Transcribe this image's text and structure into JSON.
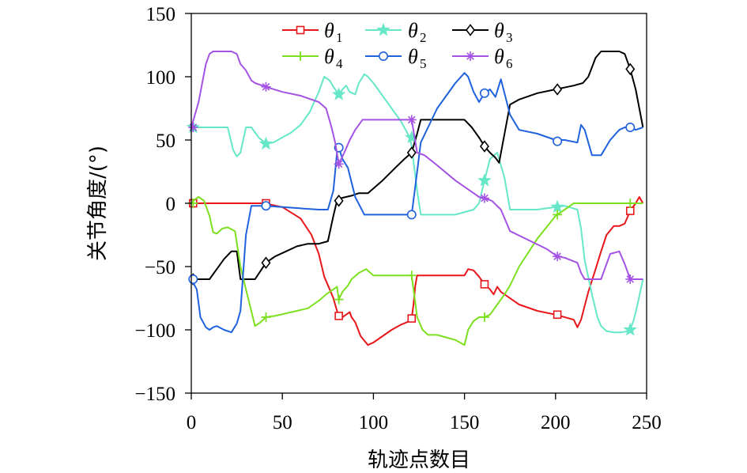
{
  "chart_data": {
    "type": "line",
    "title": "",
    "xlabel": "轨迹点数目",
    "ylabel": "关节角度/(°)",
    "xlim": [
      0,
      250
    ],
    "ylim": [
      -150,
      150
    ],
    "xticks": [
      0,
      50,
      100,
      150,
      200,
      250
    ],
    "yticks": [
      -150,
      -100,
      -50,
      0,
      50,
      100,
      150
    ],
    "xtick_labels": [
      "0",
      "50",
      "100",
      "150",
      "200",
      "250"
    ],
    "ytick_labels": [
      "−150",
      "−100",
      "−50",
      "0",
      "50",
      "100",
      "150"
    ],
    "grid": false,
    "legend_position": "top",
    "series": [
      {
        "name": "θ1",
        "legend_base": "θ",
        "legend_sub": "1",
        "color": "#e8161b",
        "marker": "square",
        "x": [
          0,
          20,
          40,
          50,
          60,
          66,
          70,
          73,
          76,
          78,
          80,
          81,
          83,
          85,
          87,
          88,
          90,
          93,
          97,
          100,
          105,
          110,
          115,
          120,
          121,
          122,
          123,
          124,
          126,
          140,
          150,
          152,
          155,
          158,
          161,
          164,
          166,
          168,
          170,
          180,
          190,
          200,
          210,
          212,
          214,
          218,
          222,
          225,
          228,
          232,
          235,
          238,
          241,
          244,
          246,
          248
        ],
        "y": [
          0,
          0,
          0,
          -3,
          -12,
          -25,
          -40,
          -58,
          -68,
          -75,
          -85,
          -89,
          -90,
          -88,
          -86,
          -90,
          -94,
          -105,
          -112,
          -110,
          -105,
          -100,
          -96,
          -93,
          -91,
          -80,
          -65,
          -57,
          -57,
          -57,
          -57,
          -52,
          -53,
          -58,
          -64,
          -68,
          -72,
          -66,
          -70,
          -80,
          -85,
          -88,
          -92,
          -98,
          -92,
          -70,
          -52,
          -38,
          -25,
          -18,
          -18,
          -16,
          -6,
          0,
          5,
          0
        ],
        "marker_x": [
          1,
          41,
          81,
          121,
          161,
          201,
          241
        ],
        "marker_y": [
          0,
          0,
          -89,
          -91,
          -64,
          -88,
          -6
        ]
      },
      {
        "name": "θ2",
        "legend_base": "θ",
        "legend_sub": "2",
        "color": "#66e8c8",
        "marker": "star",
        "x": [
          0,
          10,
          20,
          23,
          25,
          27,
          30,
          33,
          37,
          41,
          45,
          50,
          55,
          60,
          65,
          70,
          73,
          76,
          78,
          80,
          81,
          83,
          85,
          87,
          90,
          92,
          95,
          97,
          100,
          105,
          110,
          115,
          120,
          121,
          124,
          126,
          128,
          135,
          145,
          155,
          158,
          161,
          164,
          168,
          172,
          175,
          190,
          200,
          205,
          212,
          214,
          216,
          220,
          223,
          225,
          228,
          232,
          236,
          240,
          241,
          243,
          245,
          248
        ],
        "y": [
          60,
          60,
          60,
          42,
          37,
          40,
          60,
          60,
          52,
          47,
          48,
          52,
          56,
          62,
          72,
          88,
          100,
          97,
          92,
          88,
          85,
          90,
          93,
          88,
          86,
          95,
          102,
          100,
          95,
          85,
          75,
          65,
          52,
          45,
          10,
          -9,
          -9,
          -9,
          -9,
          -5,
          0,
          18,
          35,
          40,
          20,
          -5,
          -5,
          -3,
          -2,
          -5,
          -20,
          -45,
          -72,
          -90,
          -97,
          -101,
          -102,
          -102,
          -101,
          -100,
          -92,
          -80,
          -60
        ],
        "marker_x": [
          1,
          41,
          81,
          121,
          161,
          201,
          241
        ],
        "marker_y": [
          60,
          47,
          86,
          52,
          18,
          -3,
          -100
        ]
      },
      {
        "name": "θ3",
        "legend_base": "θ",
        "legend_sub": "3",
        "color": "#000000",
        "marker": "diamond",
        "x": [
          0,
          5,
          10,
          14,
          18,
          22,
          25,
          27,
          30,
          35,
          41,
          46,
          52,
          58,
          64,
          70,
          75,
          78,
          80,
          82,
          85,
          88,
          92,
          97,
          105,
          112,
          117,
          121,
          124,
          126,
          132,
          140,
          150,
          154,
          158,
          161,
          164,
          167,
          169,
          172,
          175,
          180,
          190,
          200,
          210,
          215,
          218,
          222,
          225,
          230,
          235,
          238,
          241,
          244,
          246,
          248
        ],
        "y": [
          -60,
          -60,
          -60,
          -52,
          -44,
          -38,
          -38,
          -60,
          -60,
          -60,
          -47,
          -42,
          -38,
          -34,
          -32,
          -32,
          -30,
          -10,
          2,
          4,
          5,
          6,
          8,
          8,
          18,
          28,
          35,
          40,
          55,
          66,
          66,
          66,
          66,
          60,
          52,
          45,
          40,
          36,
          32,
          55,
          78,
          82,
          87,
          90,
          93,
          95,
          100,
          115,
          120,
          120,
          120,
          118,
          106,
          90,
          75,
          60
        ],
        "marker_x": [
          1,
          41,
          81,
          121,
          161,
          201,
          241
        ],
        "marker_y": [
          -60,
          -47,
          2,
          40,
          45,
          90,
          106
        ]
      },
      {
        "name": "θ4",
        "legend_base": "θ",
        "legend_sub": "4",
        "color": "#7ce01f",
        "marker": "plus",
        "x": [
          0,
          2,
          4,
          7,
          10,
          12,
          14,
          17,
          20,
          24,
          27,
          30,
          35,
          38,
          41,
          46,
          52,
          58,
          64,
          70,
          74,
          78,
          80,
          81,
          83,
          86,
          88,
          92,
          96,
          100,
          110,
          120,
          121,
          124,
          127,
          130,
          135,
          140,
          145,
          150,
          152,
          155,
          158,
          161,
          164,
          168,
          172,
          175,
          180,
          190,
          200,
          210,
          212,
          214,
          220,
          230,
          240,
          241,
          245,
          248
        ],
        "y": [
          0,
          3,
          5,
          2,
          -10,
          -23,
          -24,
          -20,
          -19,
          -22,
          -50,
          -68,
          -97,
          -94,
          -90,
          -89,
          -87,
          -85,
          -83,
          -77,
          -72,
          -68,
          -66,
          -76,
          -70,
          -65,
          -60,
          -55,
          -52,
          -57,
          -57,
          -57,
          -57,
          -90,
          -100,
          -104,
          -104,
          -106,
          -108,
          -112,
          -100,
          -93,
          -90,
          -90,
          -88,
          -80,
          -72,
          -65,
          -50,
          -28,
          -10,
          0,
          0,
          0,
          0,
          0,
          0,
          0,
          0,
          0
        ],
        "marker_x": [
          1,
          41,
          81,
          121,
          161,
          201,
          241
        ],
        "marker_y": [
          0,
          -90,
          -76,
          -57,
          -90,
          -9,
          0
        ]
      },
      {
        "name": "θ5",
        "legend_base": "θ",
        "legend_sub": "5",
        "color": "#1f62dd",
        "marker": "circle",
        "x": [
          0,
          3,
          5,
          8,
          10,
          12,
          14,
          18,
          22,
          25,
          27,
          30,
          33,
          35,
          41,
          50,
          60,
          70,
          75,
          78,
          80,
          81,
          83,
          86,
          90,
          95,
          100,
          110,
          115,
          120,
          121,
          124,
          126,
          130,
          135,
          140,
          145,
          150,
          152,
          155,
          158,
          161,
          164,
          167,
          170,
          175,
          180,
          190,
          200,
          205,
          212,
          214,
          216,
          220,
          225,
          230,
          235,
          238,
          241,
          244,
          248
        ],
        "y": [
          -60,
          -68,
          -90,
          -98,
          -100,
          -98,
          -97,
          -100,
          -102,
          -95,
          -85,
          -25,
          -2,
          -2,
          -2,
          -3,
          -4,
          -5,
          -5,
          10,
          40,
          44,
          35,
          28,
          5,
          -9,
          -9,
          -9,
          -9,
          -9,
          -9,
          25,
          48,
          60,
          75,
          85,
          95,
          103,
          100,
          88,
          80,
          87,
          90,
          84,
          98,
          70,
          58,
          55,
          50,
          50,
          48,
          62,
          58,
          38,
          38,
          50,
          58,
          60,
          60,
          58,
          60
        ],
        "marker_x": [
          1,
          41,
          81,
          121,
          161,
          201,
          241
        ],
        "marker_y": [
          -60,
          -2,
          44,
          -9,
          87,
          49,
          60
        ]
      },
      {
        "name": "θ6",
        "legend_base": "θ",
        "legend_sub": "6",
        "color": "#a453e4",
        "marker": "asterisk",
        "x": [
          0,
          2,
          4,
          6,
          8,
          10,
          12,
          14,
          18,
          22,
          25,
          27,
          30,
          33,
          35,
          41,
          50,
          60,
          70,
          74,
          77,
          79,
          81,
          84,
          87,
          90,
          94,
          97,
          100,
          110,
          120,
          121,
          124,
          128,
          135,
          145,
          155,
          158,
          161,
          165,
          170,
          175,
          185,
          195,
          201,
          205,
          212,
          214,
          216,
          220,
          225,
          230,
          235,
          238,
          241,
          244,
          248
        ],
        "y": [
          60,
          70,
          80,
          95,
          110,
          118,
          120,
          120,
          120,
          120,
          118,
          110,
          105,
          97,
          95,
          92,
          88,
          85,
          80,
          75,
          60,
          48,
          31,
          40,
          50,
          58,
          66,
          66,
          66,
          66,
          66,
          66,
          40,
          38,
          30,
          18,
          8,
          5,
          4,
          2,
          -5,
          -22,
          -29,
          -36,
          -42,
          -43,
          -47,
          -55,
          -60,
          -60,
          -60,
          -40,
          -38,
          -48,
          -60,
          -60,
          -60
        ],
        "marker_x": [
          1,
          41,
          81,
          121,
          161,
          201,
          241
        ],
        "marker_y": [
          60,
          92,
          31,
          66,
          4,
          -42,
          -60
        ]
      }
    ]
  }
}
